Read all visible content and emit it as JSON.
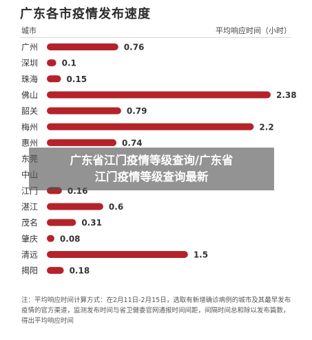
{
  "chart_data": {
    "type": "bar",
    "orientation": "horizontal",
    "title": "广东各市疫情发布速度",
    "xlabel": "平均响应时间（小时）",
    "ylabel": "城市",
    "categories": [
      "广州",
      "深圳",
      "珠海",
      "佛山",
      "韶关",
      "梅州",
      "惠州",
      "东莞",
      "中山",
      "江门",
      "湛江",
      "茂名",
      "肇庆",
      "清远",
      "揭阳"
    ],
    "values": [
      0.76,
      0.1,
      0.15,
      2.38,
      0.79,
      2.2,
      0.74,
      null,
      null,
      0.16,
      0.6,
      0.31,
      0.08,
      1.5,
      0.18
    ],
    "value_labels": [
      "0.76",
      "0.1",
      "0.15",
      "2.38",
      "0.79",
      "2.2",
      "0.74",
      "",
      "",
      "0.16",
      "0.6",
      "0.31",
      "0.08",
      "1.5",
      "0.18"
    ],
    "bar_color": "#b5232a",
    "note": "注：平均响应时间计算方式：在2月11日-2月15日，选取有新增确诊病例的城市及其最早发布疫情的官方渠道，监测发布时间与省卫健委官网通报时间间距，间隔时间总和除以发布篇数，得出平均响应时间"
  },
  "watermark": {
    "line1": "广东省江门疫情等级查询/广东省",
    "line2": "江门疫情等级查询最新"
  }
}
